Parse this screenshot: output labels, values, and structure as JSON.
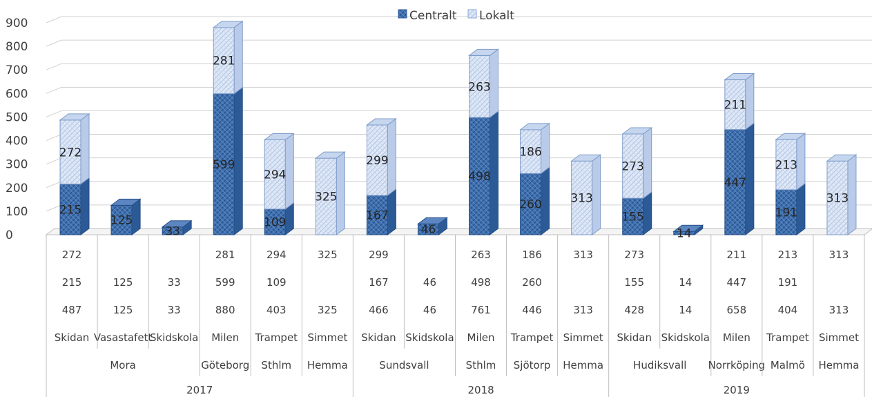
{
  "chart_data": {
    "type": "bar",
    "stacked": true,
    "three_d": true,
    "title": "",
    "xlabel": "",
    "ylabel": "",
    "ylim": [
      0,
      900
    ],
    "yticks": [
      "0",
      "100",
      "200",
      "300",
      "400",
      "500",
      "600",
      "700",
      "800",
      "900"
    ],
    "grid": true,
    "legend_position": "top",
    "series": [
      {
        "name": "Centralt",
        "color": "#2e5d99",
        "values": [
          215,
          125,
          33,
          599,
          109,
          0,
          167,
          46,
          498,
          260,
          0,
          155,
          14,
          447,
          191,
          0
        ]
      },
      {
        "name": "Lokalt",
        "color": "#a9c1e6",
        "values": [
          272,
          0,
          0,
          281,
          294,
          325,
          299,
          0,
          263,
          186,
          313,
          273,
          0,
          211,
          213,
          313
        ]
      }
    ],
    "bar_labels": {
      "centralt": [
        "215",
        "125",
        "33",
        "599",
        "109",
        "",
        "167",
        "46",
        "498",
        "260",
        "",
        "155",
        "14",
        "447",
        "191",
        ""
      ],
      "lokalt": [
        "272",
        "",
        "",
        "281",
        "294",
        "325",
        "299",
        "",
        "263",
        "186",
        "313",
        "273",
        "",
        "211",
        "213",
        "313"
      ]
    },
    "table": {
      "row_lokalt": [
        "272",
        "",
        "",
        "281",
        "294",
        "325",
        "299",
        "",
        "263",
        "186",
        "313",
        "273",
        "",
        "211",
        "213",
        "313"
      ],
      "row_centralt": [
        "215",
        "125",
        "33",
        "599",
        "109",
        "",
        "167",
        "46",
        "498",
        "260",
        "",
        "155",
        "14",
        "447",
        "191",
        ""
      ],
      "row_total": [
        "487",
        "125",
        "33",
        "880",
        "403",
        "325",
        "466",
        "46",
        "761",
        "446",
        "313",
        "428",
        "14",
        "658",
        "404",
        "313"
      ]
    },
    "categories": [
      "Skidan",
      "Vasastafett",
      "Skidskola",
      "Milen",
      "Trampet",
      "Simmet",
      "Skidan",
      "Skidskola",
      "Milen",
      "Trampet",
      "Simmet",
      "Skidan",
      "Skidskola",
      "Milen",
      "Trampet",
      "Simmet"
    ],
    "locations": [
      {
        "label": "Mora",
        "span": 3
      },
      {
        "label": "Göteborg",
        "span": 1
      },
      {
        "label": "Sthlm",
        "span": 1
      },
      {
        "label": "Hemma",
        "span": 1
      },
      {
        "label": "Sundsvall",
        "span": 2
      },
      {
        "label": "Sthlm",
        "span": 1
      },
      {
        "label": "Sjötorp",
        "span": 1
      },
      {
        "label": "Hemma",
        "span": 1
      },
      {
        "label": "Hudiksvall",
        "span": 2
      },
      {
        "label": "Norrköping",
        "span": 1
      },
      {
        "label": "Malmö",
        "span": 1
      },
      {
        "label": "Hemma",
        "span": 1
      }
    ],
    "years": [
      {
        "label": "2017",
        "span": 6
      },
      {
        "label": "2018",
        "span": 5
      },
      {
        "label": "2019",
        "span": 5
      }
    ]
  }
}
